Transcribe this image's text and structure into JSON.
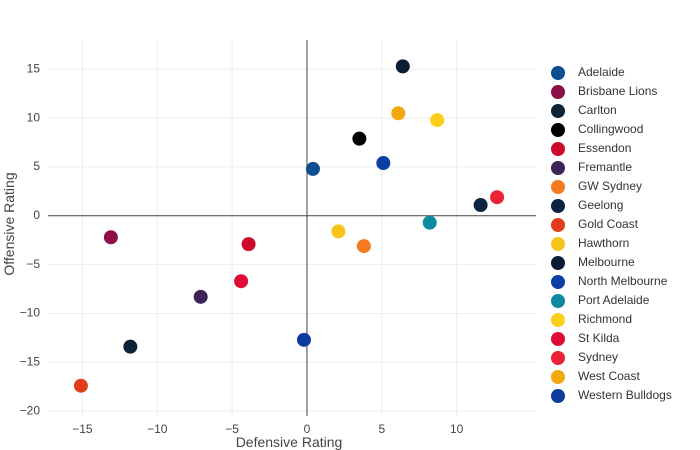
{
  "chart_data": {
    "type": "scatter",
    "title": "",
    "xlabel": "Defensive Rating",
    "ylabel": "Offensive Rating",
    "xlim": [
      -17.3,
      15.3
    ],
    "ylim": [
      -20.5,
      18
    ],
    "x_ticks": [
      -15,
      -10,
      -5,
      0,
      5,
      10
    ],
    "y_ticks": [
      -20,
      -15,
      -10,
      -5,
      0,
      5,
      10,
      15
    ],
    "grid": true,
    "legend_position": "right",
    "series": [
      {
        "name": "Adelaide",
        "color": "#0b4f91",
        "x": 0.4,
        "y": 4.8
      },
      {
        "name": "Brisbane Lions",
        "color": "#8e0e4a",
        "x": -13.1,
        "y": -2.2
      },
      {
        "name": "Carlton",
        "color": "#0e2436",
        "x": -11.8,
        "y": -13.4
      },
      {
        "name": "Collingwood",
        "color": "#000000",
        "x": 3.5,
        "y": 7.9
      },
      {
        "name": "Essendon",
        "color": "#cc0a2c",
        "x": -3.9,
        "y": -2.9
      },
      {
        "name": "Fremantle",
        "color": "#3e2357",
        "x": -7.1,
        "y": -8.3
      },
      {
        "name": "GW Sydney",
        "color": "#f47a1f",
        "x": 3.8,
        "y": -3.1
      },
      {
        "name": "Geelong",
        "color": "#0e2244",
        "x": 11.6,
        "y": 1.1
      },
      {
        "name": "Gold Coast",
        "color": "#e23d1b",
        "x": -15.1,
        "y": -17.4
      },
      {
        "name": "Hawthorn",
        "color": "#f7c41a",
        "x": 2.1,
        "y": -1.6
      },
      {
        "name": "Melbourne",
        "color": "#0c1c34",
        "x": 6.4,
        "y": 15.3
      },
      {
        "name": "North Melbourne",
        "color": "#0a3ea3",
        "x": 5.1,
        "y": 5.4
      },
      {
        "name": "Port Adelaide",
        "color": "#0d88a1",
        "x": 8.2,
        "y": -0.7
      },
      {
        "name": "Richmond",
        "color": "#fccf1b",
        "x": 8.7,
        "y": 9.8
      },
      {
        "name": "St Kilda",
        "color": "#dd0b36",
        "x": -4.4,
        "y": -6.7
      },
      {
        "name": "Sydney",
        "color": "#ec2236",
        "x": 12.7,
        "y": 1.9
      },
      {
        "name": "West Coast",
        "color": "#f1a90f",
        "x": 6.1,
        "y": 10.5
      },
      {
        "name": "Western Bulldogs",
        "color": "#0f3aa0",
        "x": -0.2,
        "y": -12.7
      }
    ]
  }
}
